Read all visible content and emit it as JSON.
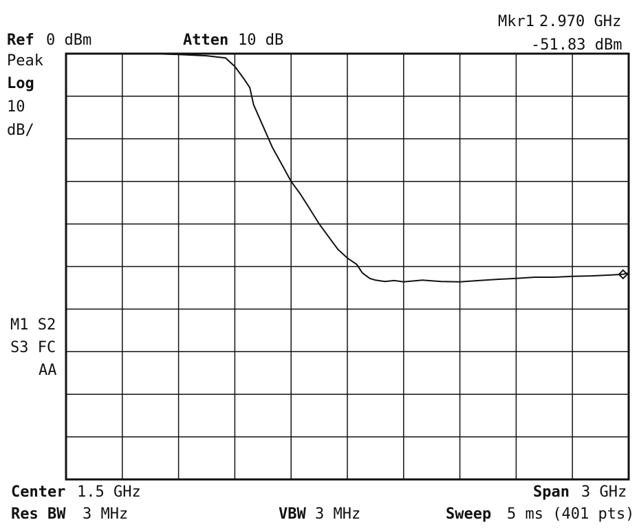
{
  "colors": {
    "background": "#ffffff",
    "ink": "#111111"
  },
  "header": {
    "ref_label": "Ref",
    "ref_value": "0 dBm",
    "atten_label": "Atten",
    "atten_value": "10 dB",
    "marker_label": "Mkr1",
    "marker_freq": "2.970 GHz",
    "marker_level": "-51.83 dBm"
  },
  "left_panel": {
    "detector": "Peak",
    "scale_label": "Log",
    "scale_value": "10",
    "scale_unit": "dB/",
    "status_line1": "M1 S2",
    "status_line2": "S3 FC",
    "status_line3": "AA"
  },
  "footer": {
    "center_label": "Center",
    "center_value": "1.5 GHz",
    "span_label": "Span",
    "span_value": "3 GHz",
    "rbw_label": "Res BW",
    "rbw_value": "3 MHz",
    "vbw_label": "VBW",
    "vbw_value": "3 MHz",
    "sweep_label": "Sweep",
    "sweep_value": "5 ms (401 pts)"
  },
  "chart_data": {
    "type": "line",
    "x_unit": "GHz",
    "y_unit": "dBm",
    "xlim": [
      0,
      3
    ],
    "ylim": [
      -100,
      0
    ],
    "grid": true,
    "series": [
      {
        "x": [
          0.0,
          0.1,
          0.2,
          0.3,
          0.45,
          0.6,
          0.75,
          0.85,
          0.9,
          0.95,
          0.98,
          1.0,
          1.05,
          1.1,
          1.15,
          1.2,
          1.25,
          1.3,
          1.35,
          1.4,
          1.45,
          1.5,
          1.55,
          1.58,
          1.62,
          1.65,
          1.7,
          1.75,
          1.8,
          1.85,
          1.9,
          2.0,
          2.1,
          2.2,
          2.3,
          2.4,
          2.5,
          2.6,
          2.7,
          2.8,
          2.9,
          2.97,
          3.0
        ],
        "y": [
          0.0,
          0.0,
          0.0,
          0.0,
          0.0,
          -0.2,
          -0.5,
          -1.0,
          -3.0,
          -6.0,
          -8.0,
          -12.0,
          -17.0,
          -22.0,
          -26.0,
          -30.0,
          -33.0,
          -36.5,
          -40.0,
          -43.0,
          -46.0,
          -48.0,
          -49.5,
          -51.5,
          -52.8,
          -53.2,
          -53.5,
          -53.3,
          -53.6,
          -53.4,
          -53.2,
          -53.5,
          -53.6,
          -53.3,
          -53.0,
          -52.8,
          -52.5,
          -52.5,
          -52.3,
          -52.2,
          -52.0,
          -51.83,
          -51.5
        ]
      }
    ],
    "marker": {
      "name": "Mkr1",
      "x": 2.97,
      "y": -51.83
    }
  }
}
